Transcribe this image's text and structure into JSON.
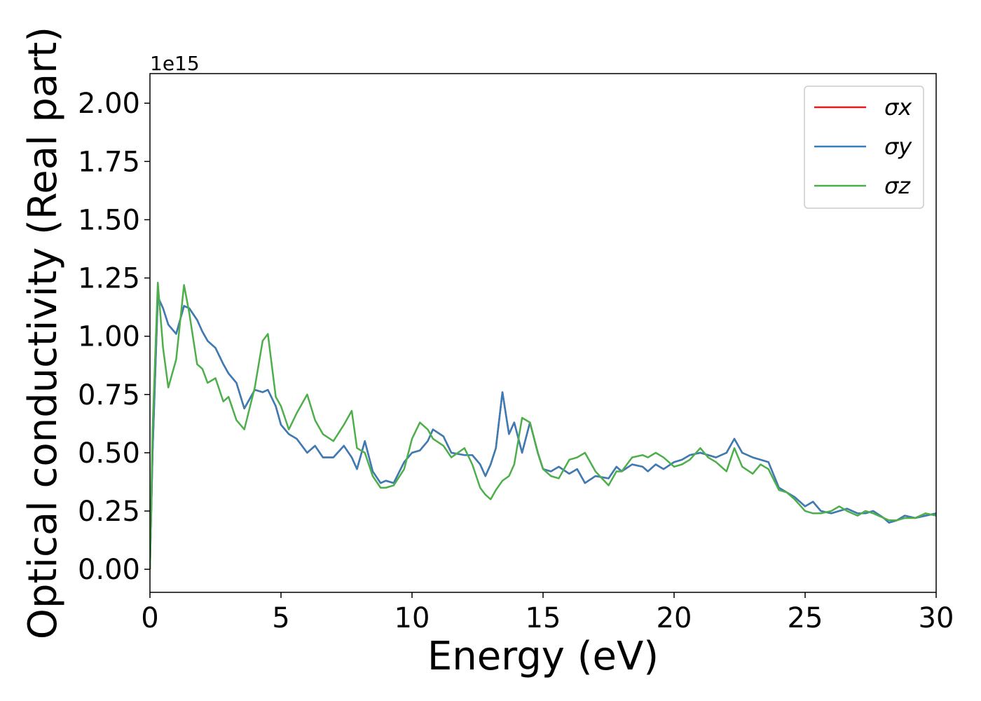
{
  "chart_data": {
    "type": "line",
    "xlabel": "Energy (eV)",
    "ylabel": "Optical conductivity (Real part)",
    "y_offset_label": "1e15",
    "x": [
      0,
      0.1,
      0.3,
      0.5,
      0.7,
      1.0,
      1.3,
      1.5,
      1.8,
      2.0,
      2.2,
      2.5,
      2.8,
      3.0,
      3.3,
      3.6,
      4.0,
      4.3,
      4.5,
      4.8,
      5.0,
      5.3,
      5.6,
      6.0,
      6.3,
      6.6,
      7.0,
      7.4,
      7.7,
      7.9,
      8.2,
      8.5,
      8.8,
      9.0,
      9.3,
      9.7,
      10.0,
      10.3,
      10.6,
      10.8,
      11.2,
      11.5,
      12.0,
      12.3,
      12.6,
      12.8,
      13.0,
      13.2,
      13.45,
      13.7,
      13.9,
      14.2,
      14.5,
      14.8,
      15.0,
      15.3,
      15.6,
      16.0,
      16.3,
      16.6,
      17.0,
      17.5,
      17.8,
      18.0,
      18.4,
      18.8,
      19.0,
      19.3,
      19.6,
      20.0,
      20.3,
      20.6,
      21.0,
      21.3,
      21.6,
      22.0,
      22.3,
      22.6,
      23.0,
      23.3,
      23.6,
      24.0,
      24.3,
      24.6,
      25.0,
      25.3,
      25.6,
      26.0,
      26.3,
      26.6,
      27.0,
      27.3,
      27.6,
      28.0,
      28.2,
      28.5,
      28.8,
      29.2,
      29.6,
      30.0
    ],
    "series": [
      {
        "name": "σx",
        "color": "#e41a1c",
        "values": [
          0,
          0.5,
          1.17,
          1.12,
          1.05,
          1.01,
          1.13,
          1.12,
          1.07,
          1.02,
          0.98,
          0.95,
          0.88,
          0.84,
          0.8,
          0.69,
          0.77,
          0.76,
          0.77,
          0.7,
          0.62,
          0.58,
          0.56,
          0.5,
          0.53,
          0.48,
          0.48,
          0.53,
          0.48,
          0.43,
          0.55,
          0.42,
          0.37,
          0.38,
          0.37,
          0.46,
          0.5,
          0.51,
          0.55,
          0.6,
          0.57,
          0.5,
          0.49,
          0.49,
          0.45,
          0.4,
          0.45,
          0.52,
          0.76,
          0.58,
          0.63,
          0.5,
          0.63,
          0.5,
          0.43,
          0.42,
          0.44,
          0.41,
          0.43,
          0.37,
          0.4,
          0.39,
          0.44,
          0.42,
          0.45,
          0.44,
          0.42,
          0.45,
          0.43,
          0.46,
          0.47,
          0.49,
          0.5,
          0.49,
          0.48,
          0.5,
          0.56,
          0.5,
          0.48,
          0.47,
          0.46,
          0.35,
          0.33,
          0.31,
          0.27,
          0.29,
          0.25,
          0.24,
          0.25,
          0.26,
          0.24,
          0.24,
          0.25,
          0.22,
          0.2,
          0.21,
          0.23,
          0.22,
          0.23,
          0.24
        ]
      },
      {
        "name": "σy",
        "color": "#377eb8",
        "values": [
          0,
          0.5,
          1.17,
          1.12,
          1.05,
          1.01,
          1.13,
          1.12,
          1.07,
          1.02,
          0.98,
          0.95,
          0.88,
          0.84,
          0.8,
          0.69,
          0.77,
          0.76,
          0.77,
          0.7,
          0.62,
          0.58,
          0.56,
          0.5,
          0.53,
          0.48,
          0.48,
          0.53,
          0.48,
          0.43,
          0.55,
          0.42,
          0.37,
          0.38,
          0.37,
          0.46,
          0.5,
          0.51,
          0.55,
          0.6,
          0.57,
          0.5,
          0.49,
          0.49,
          0.45,
          0.4,
          0.45,
          0.52,
          0.76,
          0.58,
          0.63,
          0.5,
          0.63,
          0.5,
          0.43,
          0.42,
          0.44,
          0.41,
          0.43,
          0.37,
          0.4,
          0.39,
          0.44,
          0.42,
          0.45,
          0.44,
          0.42,
          0.45,
          0.43,
          0.46,
          0.47,
          0.49,
          0.5,
          0.49,
          0.48,
          0.5,
          0.56,
          0.5,
          0.48,
          0.47,
          0.46,
          0.35,
          0.33,
          0.31,
          0.27,
          0.29,
          0.25,
          0.24,
          0.25,
          0.26,
          0.24,
          0.24,
          0.25,
          0.22,
          0.2,
          0.21,
          0.23,
          0.22,
          0.23,
          0.24
        ]
      },
      {
        "name": "σz",
        "color": "#4daf4a",
        "values": [
          0,
          0.6,
          1.23,
          0.95,
          0.78,
          0.9,
          1.22,
          1.1,
          0.88,
          0.86,
          0.8,
          0.82,
          0.72,
          0.74,
          0.64,
          0.6,
          0.78,
          0.98,
          1.01,
          0.74,
          0.7,
          0.6,
          0.67,
          0.75,
          0.64,
          0.58,
          0.55,
          0.62,
          0.68,
          0.52,
          0.5,
          0.4,
          0.35,
          0.35,
          0.36,
          0.43,
          0.56,
          0.63,
          0.6,
          0.56,
          0.53,
          0.48,
          0.52,
          0.45,
          0.35,
          0.32,
          0.3,
          0.34,
          0.38,
          0.4,
          0.45,
          0.65,
          0.63,
          0.5,
          0.43,
          0.4,
          0.39,
          0.47,
          0.48,
          0.5,
          0.42,
          0.36,
          0.42,
          0.42,
          0.48,
          0.49,
          0.48,
          0.5,
          0.48,
          0.44,
          0.45,
          0.47,
          0.52,
          0.48,
          0.46,
          0.42,
          0.52,
          0.44,
          0.41,
          0.45,
          0.43,
          0.34,
          0.33,
          0.3,
          0.25,
          0.24,
          0.24,
          0.25,
          0.27,
          0.25,
          0.23,
          0.25,
          0.24,
          0.22,
          0.21,
          0.21,
          0.22,
          0.22,
          0.24,
          0.23
        ]
      }
    ],
    "xlim": [
      0,
      30
    ],
    "xticks": [
      0,
      5,
      10,
      15,
      20,
      25,
      30
    ],
    "ylim": [
      -0.099,
      2.127
    ],
    "yticks": [
      {
        "value": 0,
        "label": "0.00"
      },
      {
        "value": 0.25,
        "label": "0.25"
      },
      {
        "value": 0.5,
        "label": "0.50"
      },
      {
        "value": 0.75,
        "label": "0.75"
      },
      {
        "value": 1.0,
        "label": "1.00"
      },
      {
        "value": 1.25,
        "label": "1.25"
      },
      {
        "value": 1.5,
        "label": "1.50"
      },
      {
        "value": 1.75,
        "label": "1.75"
      },
      {
        "value": 2.0,
        "label": "2.00"
      }
    ],
    "grid": false,
    "legend": "upper right"
  }
}
